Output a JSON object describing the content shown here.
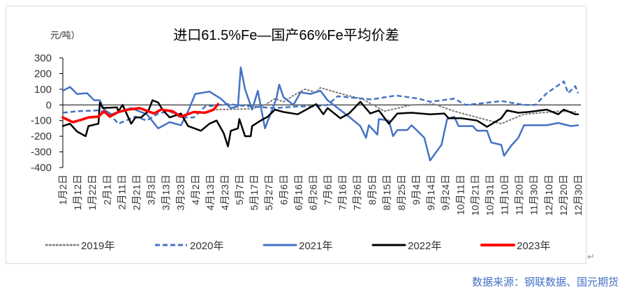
{
  "chart_data": {
    "type": "line",
    "title": "进口61.5%Fe—国产66%Fe平均价差",
    "ylabel": "元/吨）",
    "xlabel": "",
    "ylim": [
      -400,
      300
    ],
    "yticks": [
      300,
      200,
      100,
      0,
      -100,
      -200,
      -300,
      -400
    ],
    "xlim": [
      "01-02",
      "12-30"
    ],
    "xticks": [
      "1月2日",
      "1月12日",
      "1月22日",
      "2月1日",
      "2月11日",
      "2月21日",
      "3月3日",
      "3月13日",
      "3月23日",
      "4月2日",
      "4月13日",
      "4月23日",
      "5月7日",
      "5月17日",
      "5月27日",
      "6月6日",
      "6月16日",
      "6月26日",
      "7月6日",
      "7月16日",
      "7月26日",
      "8月5日",
      "8月15日",
      "8月25日",
      "9月4日",
      "9月14日",
      "9月24日",
      "10月11日",
      "10月21日",
      "10月31日",
      "11月10日",
      "11月20日",
      "11月30日",
      "12月10日",
      "12月20日",
      "12月30日"
    ],
    "grid": false,
    "legend_position": "bottom",
    "series": [
      {
        "name": "2019年",
        "color": "#808080",
        "style": "dotted",
        "points": [
          [
            "04-20",
            -30
          ],
          [
            "05-14",
            -25
          ],
          [
            "05-24",
            0
          ],
          [
            "05-31",
            40
          ],
          [
            "06-06",
            20
          ],
          [
            "06-13",
            60
          ],
          [
            "06-21",
            100
          ],
          [
            "06-29",
            80
          ],
          [
            "07-02",
            110
          ],
          [
            "07-17",
            70
          ],
          [
            "08-01",
            35
          ],
          [
            "08-16",
            -40
          ],
          [
            "09-04",
            0
          ],
          [
            "09-20",
            5
          ],
          [
            "10-04",
            -40
          ],
          [
            "10-12",
            -60
          ],
          [
            "11-06",
            -120
          ],
          [
            "11-15",
            -85
          ],
          [
            "11-22",
            -60
          ],
          [
            "12-16",
            -40
          ],
          [
            "12-28",
            -45
          ]
        ]
      },
      {
        "name": "2020年",
        "color": "#4472c4",
        "style": "dashed",
        "points": [
          [
            "01-02",
            -50
          ],
          [
            "01-12",
            -40
          ],
          [
            "01-28",
            -35
          ],
          [
            "02-05",
            -70
          ],
          [
            "02-10",
            -120
          ],
          [
            "02-22",
            -75
          ],
          [
            "03-02",
            -100
          ],
          [
            "03-10",
            -55
          ],
          [
            "03-18",
            -40
          ],
          [
            "03-26",
            -80
          ],
          [
            "04-04",
            -80
          ],
          [
            "04-12",
            -10
          ],
          [
            "04-28",
            5
          ],
          [
            "05-14",
            -10
          ],
          [
            "05-31",
            -20
          ],
          [
            "06-16",
            -10
          ],
          [
            "06-29",
            -10
          ],
          [
            "07-07",
            0
          ],
          [
            "07-14",
            55
          ],
          [
            "08-07",
            35
          ],
          [
            "08-24",
            60
          ],
          [
            "09-09",
            40
          ],
          [
            "09-17",
            20
          ],
          [
            "10-04",
            40
          ],
          [
            "10-12",
            0
          ],
          [
            "10-28",
            15
          ],
          [
            "11-06",
            25
          ],
          [
            "11-22",
            0
          ],
          [
            "11-30",
            0
          ],
          [
            "12-08",
            75
          ],
          [
            "12-20",
            150
          ],
          [
            "12-23",
            75
          ],
          [
            "12-28",
            120
          ],
          [
            "12-30",
            75
          ]
        ]
      },
      {
        "name": "2021年",
        "color": "#4472c4",
        "style": "solid",
        "points": [
          [
            "01-02",
            90
          ],
          [
            "01-07",
            115
          ],
          [
            "01-12",
            70
          ],
          [
            "01-19",
            75
          ],
          [
            "01-24",
            30
          ],
          [
            "01-28",
            30
          ],
          [
            "01-31",
            -30
          ],
          [
            "02-05",
            -60
          ],
          [
            "02-19",
            -20
          ],
          [
            "03-02",
            -60
          ],
          [
            "03-10",
            -150
          ],
          [
            "03-18",
            -110
          ],
          [
            "03-26",
            -130
          ],
          [
            "03-31",
            -40
          ],
          [
            "04-05",
            70
          ],
          [
            "04-15",
            85
          ],
          [
            "04-23",
            40
          ],
          [
            "04-30",
            -20
          ],
          [
            "05-05",
            -10
          ],
          [
            "05-07",
            240
          ],
          [
            "05-10",
            100
          ],
          [
            "05-15",
            -30
          ],
          [
            "05-19",
            90
          ],
          [
            "05-24",
            -150
          ],
          [
            "06-01",
            40
          ],
          [
            "06-03",
            130
          ],
          [
            "06-06",
            50
          ],
          [
            "06-13",
            0
          ],
          [
            "06-18",
            80
          ],
          [
            "06-25",
            70
          ],
          [
            "07-02",
            90
          ],
          [
            "07-07",
            30
          ],
          [
            "07-22",
            -75
          ],
          [
            "07-30",
            -135
          ],
          [
            "08-03",
            -210
          ],
          [
            "08-05",
            -130
          ],
          [
            "08-11",
            -190
          ],
          [
            "08-12",
            -90
          ],
          [
            "08-19",
            -100
          ],
          [
            "08-22",
            -200
          ],
          [
            "08-25",
            -160
          ],
          [
            "09-01",
            -160
          ],
          [
            "09-04",
            -130
          ],
          [
            "09-13",
            -210
          ],
          [
            "09-17",
            -355
          ],
          [
            "09-25",
            -255
          ],
          [
            "09-29",
            -90
          ],
          [
            "10-04",
            -75
          ],
          [
            "10-07",
            -135
          ],
          [
            "10-17",
            -135
          ],
          [
            "10-20",
            -165
          ],
          [
            "10-27",
            -165
          ],
          [
            "10-30",
            -240
          ],
          [
            "11-06",
            -255
          ],
          [
            "11-08",
            -325
          ],
          [
            "11-13",
            -260
          ],
          [
            "11-18",
            -210
          ],
          [
            "11-22",
            -130
          ],
          [
            "11-30",
            -130
          ],
          [
            "12-08",
            -130
          ],
          [
            "12-16",
            -115
          ],
          [
            "12-25",
            -135
          ],
          [
            "12-30",
            -130
          ]
        ]
      },
      {
        "name": "2022年",
        "color": "#000000",
        "style": "solid",
        "points": [
          [
            "01-02",
            -135
          ],
          [
            "01-07",
            -120
          ],
          [
            "01-12",
            -170
          ],
          [
            "01-18",
            -200
          ],
          [
            "01-20",
            -135
          ],
          [
            "01-27",
            -120
          ],
          [
            "01-28",
            15
          ],
          [
            "01-30",
            -20
          ],
          [
            "02-09",
            -15
          ],
          [
            "02-10",
            -40
          ],
          [
            "02-13",
            0
          ],
          [
            "02-19",
            -120
          ],
          [
            "02-22",
            -80
          ],
          [
            "02-26",
            -80
          ],
          [
            "03-03",
            -40
          ],
          [
            "03-06",
            30
          ],
          [
            "03-10",
            15
          ],
          [
            "03-13",
            -30
          ],
          [
            "03-18",
            -80
          ],
          [
            "03-26",
            -55
          ],
          [
            "03-31",
            -135
          ],
          [
            "04-09",
            -165
          ],
          [
            "04-15",
            -120
          ],
          [
            "04-20",
            -100
          ],
          [
            "04-25",
            -180
          ],
          [
            "04-28",
            -265
          ],
          [
            "04-30",
            -165
          ],
          [
            "05-05",
            -150
          ],
          [
            "05-06",
            -90
          ],
          [
            "05-10",
            -200
          ],
          [
            "05-14",
            -200
          ],
          [
            "05-15",
            -135
          ],
          [
            "05-21",
            -100
          ],
          [
            "05-26",
            -75
          ],
          [
            "05-31",
            -30
          ],
          [
            "06-06",
            -45
          ],
          [
            "06-16",
            -60
          ],
          [
            "06-29",
            5
          ],
          [
            "07-04",
            -60
          ],
          [
            "07-07",
            -20
          ],
          [
            "07-16",
            -85
          ],
          [
            "07-22",
            -55
          ],
          [
            "07-30",
            20
          ],
          [
            "08-06",
            -55
          ],
          [
            "08-12",
            -35
          ],
          [
            "08-19",
            -120
          ],
          [
            "08-25",
            -55
          ],
          [
            "09-04",
            -50
          ],
          [
            "09-17",
            -60
          ],
          [
            "09-27",
            -55
          ],
          [
            "09-30",
            -85
          ],
          [
            "10-09",
            -85
          ],
          [
            "10-20",
            -100
          ],
          [
            "10-27",
            -140
          ],
          [
            "11-06",
            -85
          ],
          [
            "11-10",
            -35
          ],
          [
            "11-18",
            -50
          ],
          [
            "11-25",
            -45
          ],
          [
            "12-08",
            -30
          ],
          [
            "12-16",
            -60
          ],
          [
            "12-20",
            -30
          ],
          [
            "12-28",
            -60
          ],
          [
            "12-30",
            -60
          ]
        ]
      },
      {
        "name": "2023年",
        "color": "#ff0000",
        "style": "solid-thick",
        "points": [
          [
            "01-02",
            -80
          ],
          [
            "01-09",
            -110
          ],
          [
            "01-15",
            -95
          ],
          [
            "01-20",
            -80
          ],
          [
            "01-27",
            -75
          ],
          [
            "01-31",
            -40
          ],
          [
            "02-04",
            -75
          ],
          [
            "02-10",
            -45
          ],
          [
            "02-17",
            -30
          ],
          [
            "02-25",
            -20
          ],
          [
            "03-07",
            -55
          ],
          [
            "03-12",
            -30
          ],
          [
            "03-20",
            -40
          ],
          [
            "03-26",
            -75
          ],
          [
            "04-04",
            -45
          ],
          [
            "04-12",
            -50
          ],
          [
            "04-18",
            -30
          ],
          [
            "04-21",
            5
          ]
        ]
      }
    ]
  },
  "source": "数据来源：钢联数据、国元期货",
  "return_mark": "↵"
}
